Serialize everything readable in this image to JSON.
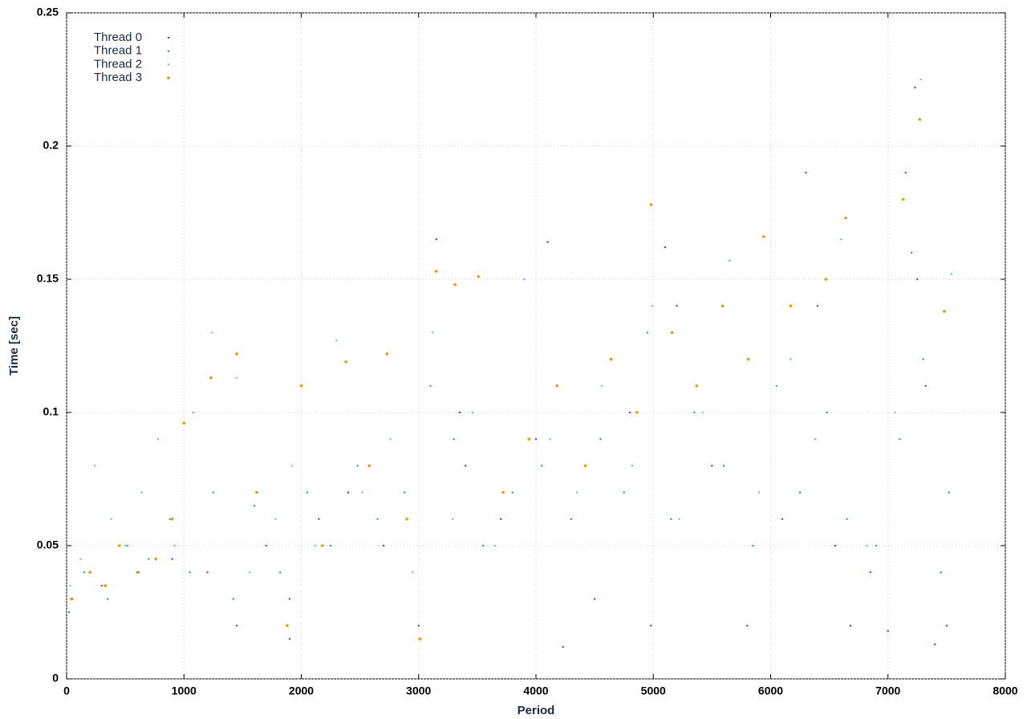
{
  "chart_data": {
    "type": "scatter",
    "xlabel": "Period",
    "ylabel": "Time [sec]",
    "xlim": [
      0,
      8000
    ],
    "xticks": [
      0,
      1000,
      2000,
      3000,
      4000,
      5000,
      6000,
      7000,
      8000
    ],
    "ylim": [
      0,
      0.25
    ],
    "yticks": [
      0,
      0.05,
      0.1,
      0.15,
      0.2,
      0.25
    ],
    "grid": true,
    "legend": "top-left",
    "series": [
      {
        "name": "Thread 0",
        "color": "#9400d3",
        "x": [
          50,
          300,
          600,
          900,
          1200,
          1450,
          1700,
          1900,
          2150,
          2400,
          2700,
          3000,
          3150,
          3400,
          3700,
          4000,
          4230,
          4500,
          4800,
          4980,
          5200,
          5500,
          5800,
          6100,
          6300,
          6550,
          6680,
          6850,
          7000,
          7150,
          7250,
          7400,
          7500,
          3350,
          1900,
          5100,
          6400,
          7230,
          7320,
          4100
        ],
        "y": [
          0.03,
          0.035,
          0.04,
          0.045,
          0.04,
          0.02,
          0.05,
          0.015,
          0.06,
          0.07,
          0.05,
          0.02,
          0.165,
          0.08,
          0.06,
          0.09,
          0.012,
          0.03,
          0.1,
          0.02,
          0.14,
          0.08,
          0.02,
          0.06,
          0.19,
          0.05,
          0.02,
          0.04,
          0.018,
          0.19,
          0.15,
          0.013,
          0.02,
          0.1,
          0.03,
          0.162,
          0.14,
          0.222,
          0.11,
          0.164
        ]
      },
      {
        "name": "Thread 1",
        "color": "#009e73",
        "x": [
          20,
          150,
          350,
          520,
          700,
          880,
          1050,
          1250,
          1420,
          1600,
          1820,
          2050,
          2250,
          2480,
          2650,
          2880,
          3100,
          3300,
          3550,
          3800,
          4050,
          4300,
          4550,
          4750,
          4950,
          5150,
          5350,
          5600,
          5850,
          6050,
          6250,
          6480,
          6650,
          6900,
          7100,
          7200,
          7300,
          7450,
          7520,
          5650
        ],
        "y": [
          0.025,
          0.04,
          0.03,
          0.05,
          0.045,
          0.06,
          0.04,
          0.07,
          0.03,
          0.065,
          0.04,
          0.07,
          0.05,
          0.08,
          0.06,
          0.07,
          0.11,
          0.09,
          0.05,
          0.07,
          0.08,
          0.06,
          0.09,
          0.07,
          0.13,
          0.06,
          0.1,
          0.08,
          0.05,
          0.11,
          0.07,
          0.1,
          0.06,
          0.05,
          0.09,
          0.16,
          0.12,
          0.04,
          0.07,
          0.157
        ]
      },
      {
        "name": "Thread 2",
        "color": "#56b4e9",
        "x": [
          30,
          120,
          240,
          380,
          500,
          640,
          780,
          920,
          1080,
          1240,
          1450,
          1560,
          1780,
          1920,
          2120,
          2300,
          2520,
          2760,
          2950,
          3120,
          3290,
          3460,
          3650,
          3900,
          4120,
          4350,
          4560,
          4820,
          4990,
          5220,
          5420,
          5650,
          5900,
          6170,
          6380,
          6600,
          6820,
          7060,
          7280,
          7540
        ],
        "y": [
          0.035,
          0.045,
          0.08,
          0.06,
          0.05,
          0.07,
          0.09,
          0.05,
          0.1,
          0.13,
          0.113,
          0.04,
          0.06,
          0.08,
          0.05,
          0.127,
          0.07,
          0.09,
          0.04,
          0.13,
          0.06,
          0.1,
          0.05,
          0.15,
          0.09,
          0.07,
          0.11,
          0.08,
          0.14,
          0.06,
          0.1,
          0.157,
          0.07,
          0.12,
          0.09,
          0.165,
          0.05,
          0.1,
          0.225,
          0.152
        ]
      },
      {
        "name": "Thread 3",
        "color": "#e69f00",
        "x": [
          40,
          200,
          330,
          450,
          610,
          760,
          900,
          1000,
          1230,
          1450,
          1620,
          1880,
          2000,
          2180,
          2380,
          2580,
          2730,
          2900,
          3010,
          3150,
          3310,
          3510,
          3720,
          3940,
          4180,
          4420,
          4640,
          4860,
          4980,
          5160,
          5370,
          5590,
          5810,
          5940,
          6170,
          6470,
          6640,
          7130,
          7270,
          7480
        ],
        "y": [
          0.03,
          0.04,
          0.035,
          0.05,
          0.04,
          0.045,
          0.06,
          0.096,
          0.113,
          0.122,
          0.07,
          0.02,
          0.11,
          0.05,
          0.119,
          0.08,
          0.122,
          0.06,
          0.015,
          0.153,
          0.148,
          0.151,
          0.07,
          0.09,
          0.11,
          0.08,
          0.12,
          0.1,
          0.178,
          0.13,
          0.11,
          0.14,
          0.12,
          0.166,
          0.14,
          0.15,
          0.173,
          0.18,
          0.21,
          0.138
        ]
      }
    ]
  }
}
